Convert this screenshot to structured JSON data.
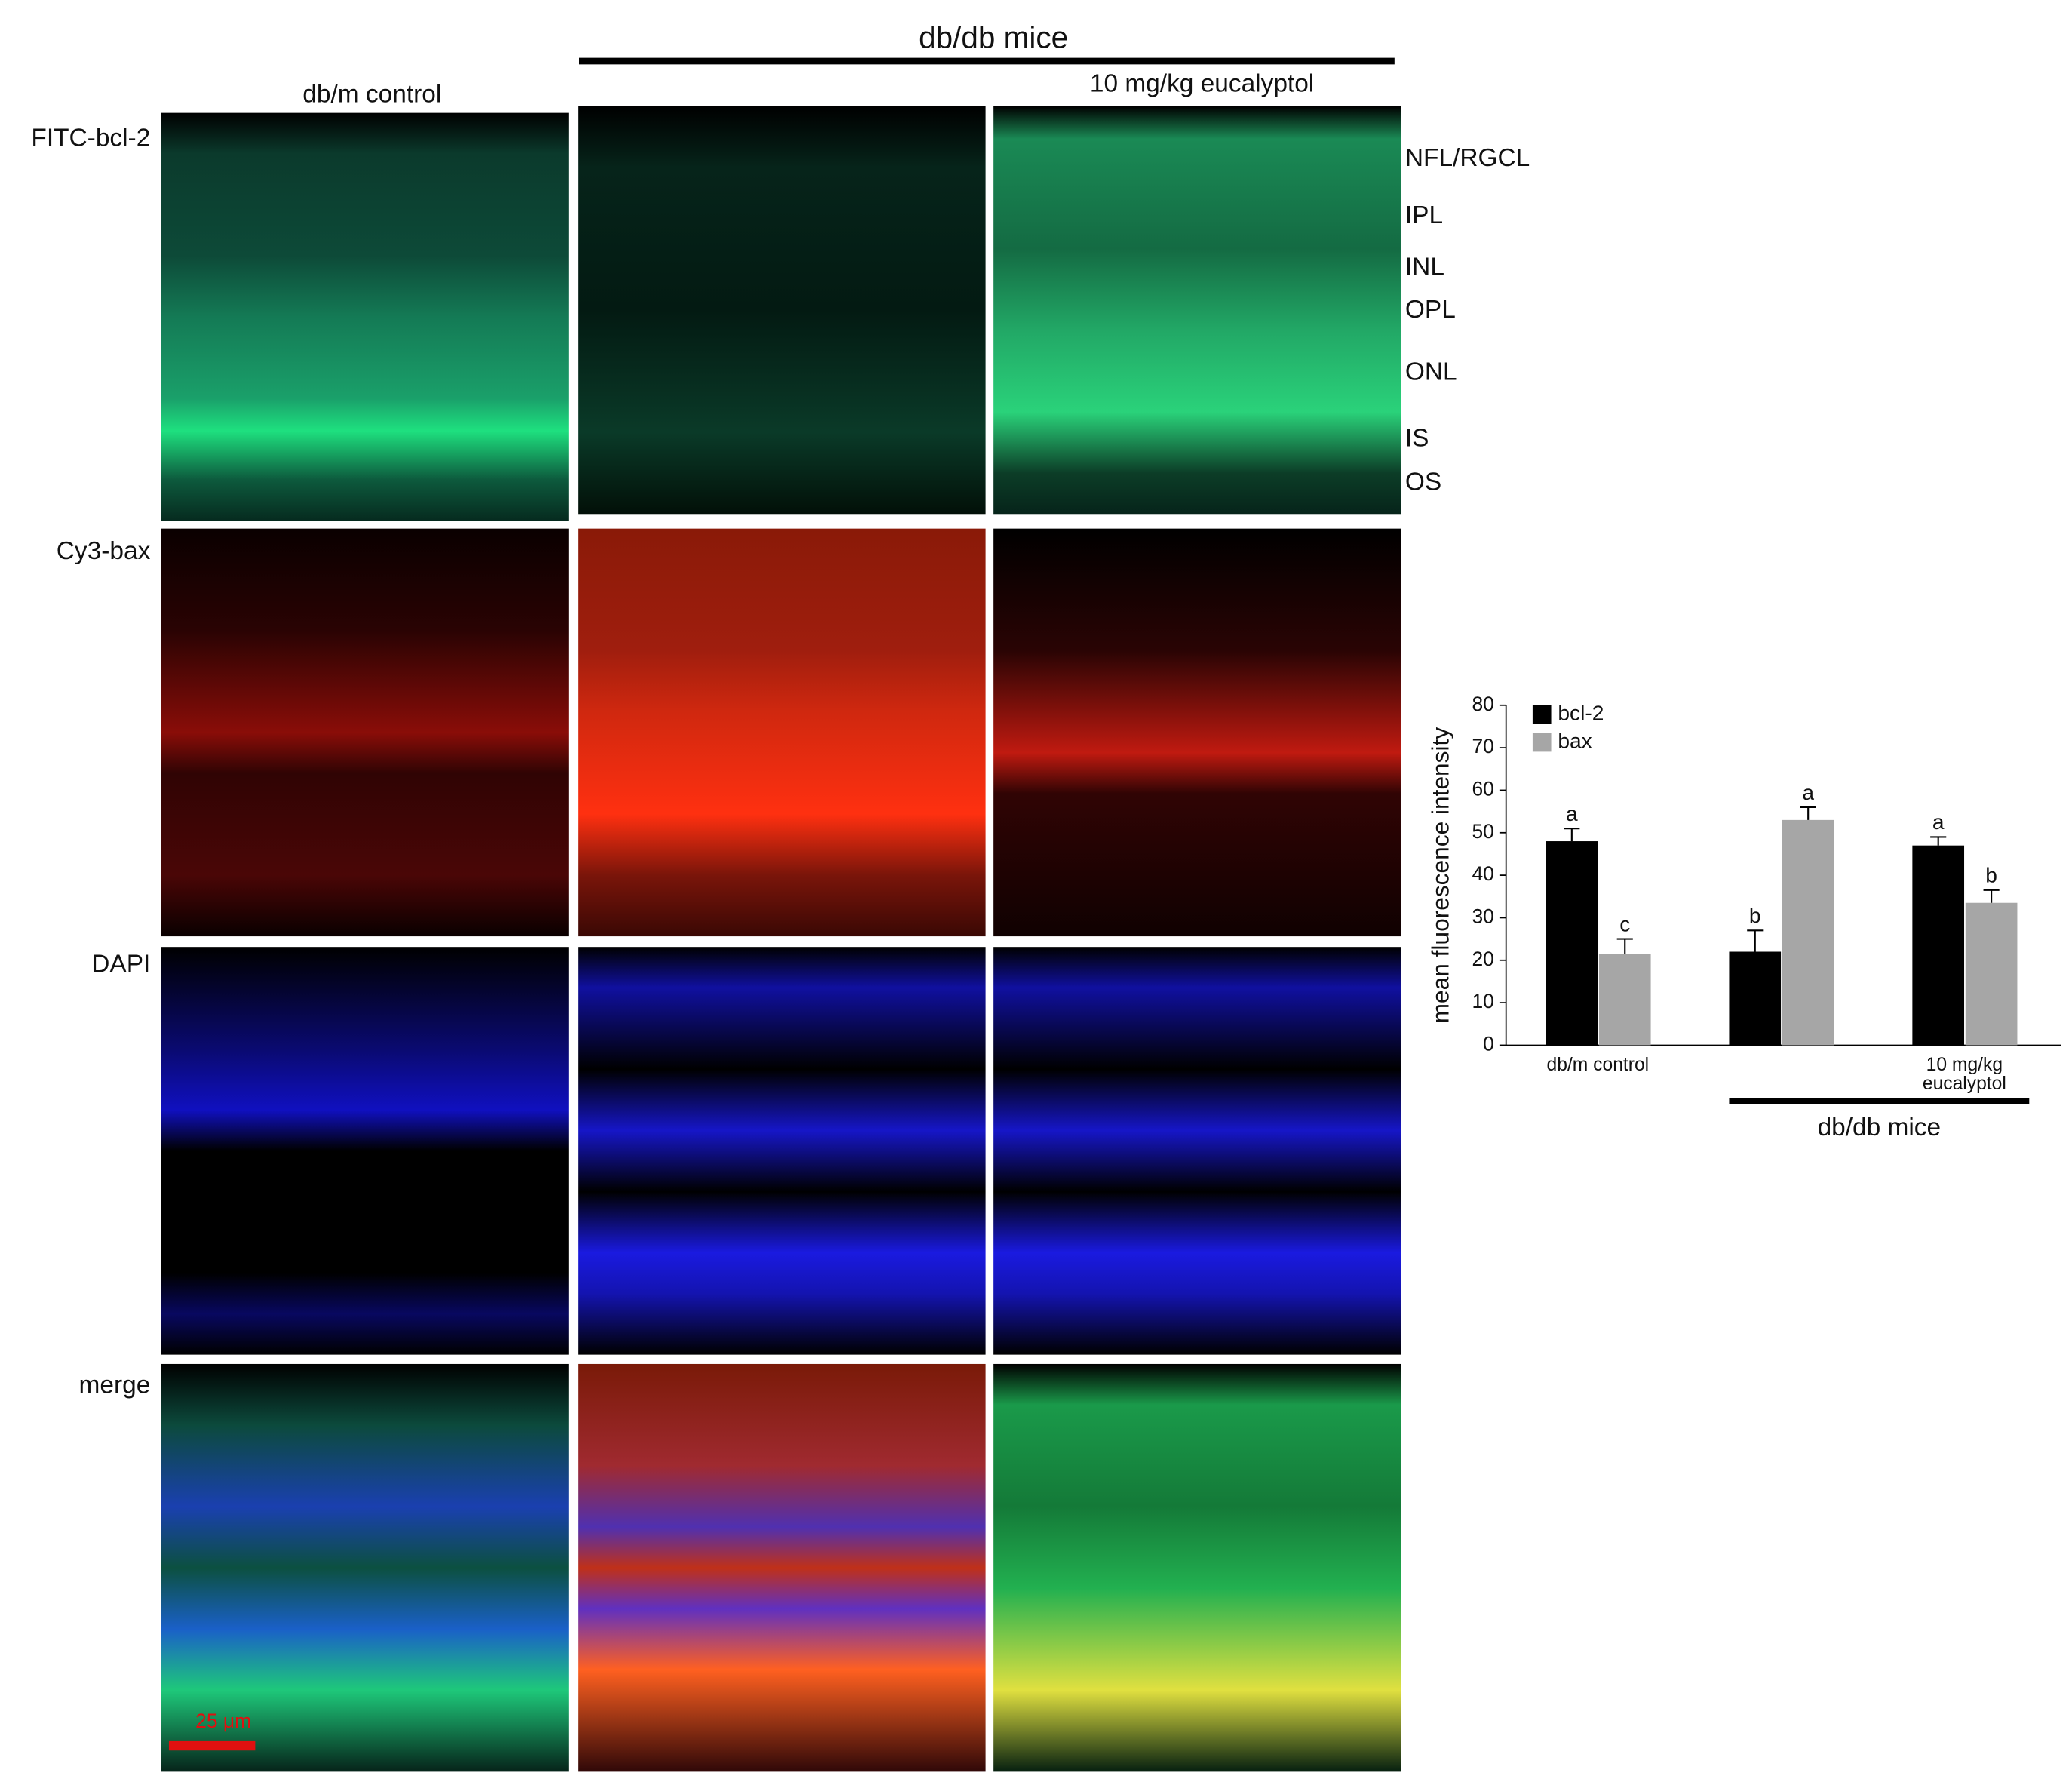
{
  "header": {
    "group_label": "db/db mice",
    "col_labels": [
      "db/m control",
      "10 mg/kg eucalyptol"
    ]
  },
  "row_labels": [
    "FITC-bcl-2",
    "Cy3-bax",
    "DAPI",
    "merge"
  ],
  "layer_labels": [
    "NFL/RGCL",
    "IPL",
    "INL",
    "OPL",
    "ONL",
    "IS",
    "OS"
  ],
  "scale_bar": "25 μm",
  "chart_data": {
    "type": "bar",
    "ylabel": "mean fluorescence intensity",
    "categories": [
      "db/m control",
      null,
      "10 mg/kg\neucalyptol"
    ],
    "group_label": "db/db mice",
    "series": [
      {
        "name": "bcl-2",
        "color": "#000000",
        "values": [
          48,
          22,
          47
        ],
        "errors": [
          3,
          5,
          2
        ],
        "significance": [
          "a",
          "b",
          "a"
        ]
      },
      {
        "name": "bax",
        "color": "#a6a6a6",
        "values": [
          21.5,
          53,
          33.5
        ],
        "errors": [
          3.5,
          3,
          3
        ],
        "significance": [
          "c",
          "a",
          "b"
        ]
      }
    ],
    "ylim": [
      0,
      80
    ],
    "yticks": [
      0,
      10,
      20,
      30,
      40,
      50,
      60,
      70,
      80
    ],
    "legend": "upper left"
  }
}
